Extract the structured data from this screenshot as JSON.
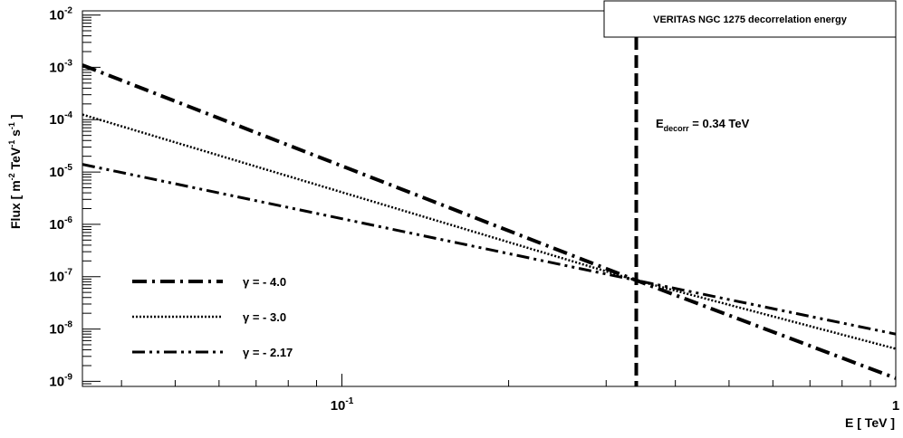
{
  "chart_data": {
    "type": "line",
    "title": "VERITAS  NGC 1275  decorrelation energy",
    "xlabel": {
      "main": "E  [ TeV ]"
    },
    "ylabel": {
      "main": "Flux  [ m",
      "exp1": "-2",
      "part2": " TeV",
      "exp2": "-1",
      "part3": " s",
      "exp3": "-1",
      "end": " ]"
    },
    "x_scale": "log",
    "y_scale": "log",
    "xlim": [
      0.034,
      1.0
    ],
    "ylim": [
      8e-10,
      0.012
    ],
    "x_ticks": [
      {
        "value": 0.1,
        "base": "10",
        "exp": "-1"
      },
      {
        "value": 1.0,
        "base": "1",
        "exp": ""
      }
    ],
    "y_ticks": [
      {
        "value": 1e-09,
        "base": "10",
        "exp": "-9"
      },
      {
        "value": 1e-08,
        "base": "10",
        "exp": "-8"
      },
      {
        "value": 1e-07,
        "base": "10",
        "exp": "-7"
      },
      {
        "value": 1e-06,
        "base": "10",
        "exp": "-6"
      },
      {
        "value": 1e-05,
        "base": "10",
        "exp": "-5"
      },
      {
        "value": 0.0001,
        "base": "10",
        "exp": "-4"
      },
      {
        "value": 0.001,
        "base": "10",
        "exp": "-3"
      },
      {
        "value": 0.01,
        "base": "10",
        "exp": "-2"
      }
    ],
    "series": [
      {
        "name": "γ = - 4.0",
        "index": -4.0,
        "style": "dash-dot",
        "x": [
          0.034,
          0.34,
          1.0
        ],
        "y": [
          0.0011,
          8.5e-08,
          1.15e-09
        ]
      },
      {
        "name": "γ = - 3.0",
        "index": -3.0,
        "style": "dotted",
        "x": [
          0.034,
          0.34,
          1.0
        ],
        "y": [
          0.000125,
          8.5e-08,
          4.2e-09
        ]
      },
      {
        "name": "γ = - 2.17",
        "index": -2.17,
        "style": "dash-dot-dot",
        "x": [
          0.034,
          0.34,
          1.0
        ],
        "y": [
          1.4e-05,
          8.5e-08,
          8e-09
        ]
      }
    ],
    "vertical_line": {
      "x": 0.34,
      "style": "dashed"
    },
    "annotation": {
      "main": "E",
      "sub": "decorr",
      "rest": " = 0.34 TeV"
    },
    "legend_position": "lower-left",
    "grid": false
  }
}
